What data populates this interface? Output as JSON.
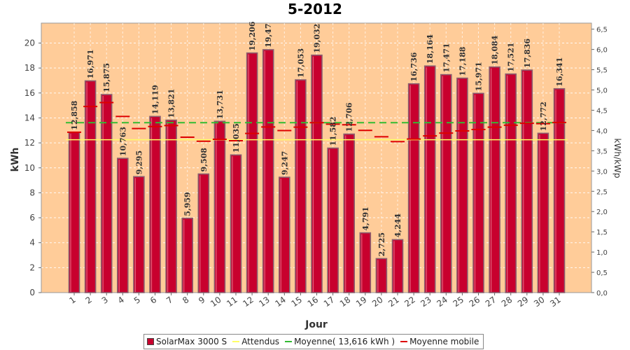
{
  "chart_data": {
    "type": "bar",
    "title": "5-2012",
    "xlabel": "Jour",
    "ylabel": "kWh",
    "ylabel_right": "kWh/kWp",
    "ylim": [
      0,
      21.6
    ],
    "yticks": [
      "0",
      "2",
      "4",
      "6",
      "8",
      "10",
      "12",
      "14",
      "16",
      "18",
      "20"
    ],
    "ylim_right": [
      0,
      6.65
    ],
    "yticks_right": [
      "0,0",
      "0,5",
      "1,0",
      "1,5",
      "2,0",
      "2,5",
      "3,0",
      "3,5",
      "4,0",
      "4,5",
      "5,0",
      "5,5",
      "6,0",
      "6,5"
    ],
    "categories": [
      "1",
      "2",
      "3",
      "4",
      "5",
      "6",
      "7",
      "8",
      "9",
      "10",
      "11",
      "12",
      "13",
      "14",
      "15",
      "16",
      "17",
      "18",
      "19",
      "20",
      "21",
      "22",
      "23",
      "24",
      "25",
      "26",
      "27",
      "28",
      "29",
      "30",
      "31"
    ],
    "series": [
      {
        "name": "SolarMax 3000 S",
        "color": "#c8002e",
        "values": [
          12.858,
          16.971,
          15.875,
          10.763,
          9.295,
          14.119,
          13.821,
          5.959,
          9.508,
          13.731,
          11.035,
          19.206,
          19.47,
          9.247,
          17.053,
          19.032,
          11.582,
          12.706,
          4.791,
          2.725,
          4.244,
          16.736,
          18.164,
          17.471,
          17.188,
          15.971,
          18.084,
          17.521,
          17.836,
          12.772,
          16.341
        ],
        "labels": [
          "12,858",
          "16,971",
          "15,875",
          "10,763",
          "9,295",
          "14,119",
          "13,821",
          "5,959",
          "9,508",
          "13,731",
          "11,035",
          "19,206",
          "19,47",
          "9,247",
          "17,053",
          "19,032",
          "11,582",
          "12,706",
          "4,791",
          "2,725",
          "4,244",
          "16,736",
          "18,164",
          "17,471",
          "17,188",
          "15,971",
          "18,084",
          "17,521",
          "17,836",
          "12,772",
          "16,341"
        ]
      },
      {
        "name": "Attendus",
        "color": "#ffff66",
        "value": 12.25
      },
      {
        "name": "Moyenne( 13,616 kWh )",
        "color": "#33bb33",
        "value": 13.616
      },
      {
        "name": "Moyenne mobile",
        "color": "#dd0000",
        "values": [
          12.858,
          14.915,
          15.235,
          14.117,
          13.152,
          13.313,
          13.385,
          12.457,
          12.129,
          12.289,
          12.175,
          12.76,
          13.277,
          12.989,
          13.259,
          13.619,
          13.499,
          13.454,
          13.002,
          12.488,
          12.094,
          12.305,
          12.559,
          12.782,
          12.962,
          13.075,
          13.261,
          13.419,
          13.571,
          13.543,
          13.632
        ]
      }
    ],
    "grid": true,
    "legend_position": "bottom"
  },
  "colors": {
    "plot_background": "#ffcc99",
    "bar": "#c8002e",
    "bar_edge": "#8a6070",
    "expected": "#ffff66",
    "average": "#33bb33",
    "moving_average": "#dd0000"
  }
}
